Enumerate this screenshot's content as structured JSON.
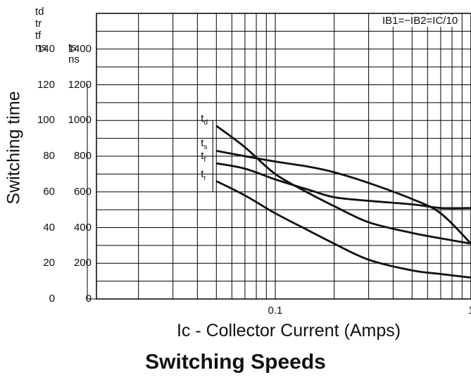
{
  "chart_data": {
    "type": "line",
    "title": "Switching Speeds",
    "xlabel": "Ic - Collector Current (Amps)",
    "ylabel": "Switching time",
    "xscale": "log",
    "xlim": [
      0.0122,
      1
    ],
    "x_ticks": [
      "0.1",
      "1"
    ],
    "ylim_left": [
      0,
      160
    ],
    "ylim_right": [
      0,
      1600
    ],
    "y_header_left": [
      "td",
      "tr",
      "tf",
      "ns"
    ],
    "y_header_right": [
      "ts",
      "ns"
    ],
    "y_ticks_left": [
      "0",
      "20",
      "40",
      "60",
      "80",
      "100",
      "120",
      "140"
    ],
    "y_ticks_right": [
      "0",
      "200",
      "400",
      "600",
      "800",
      "1000",
      "1200",
      "1400"
    ],
    "annotation": "IB1=−IB2=IC/10",
    "grid": true,
    "series": [
      {
        "name": "td",
        "label_text": "t",
        "label_sub": "d",
        "x": [
          0.05,
          0.07,
          0.1,
          0.15,
          0.2,
          0.3,
          0.5,
          0.7,
          1.0
        ],
        "y": [
          97,
          85,
          70,
          59,
          52,
          43,
          37,
          34,
          31
        ]
      },
      {
        "name": "ts",
        "label_text": "t",
        "label_sub": "s",
        "x": [
          0.05,
          0.07,
          0.1,
          0.15,
          0.2,
          0.3,
          0.5,
          0.7,
          1.0
        ],
        "y": [
          83,
          80,
          77,
          74,
          71,
          65,
          56,
          48,
          31
        ]
      },
      {
        "name": "tf",
        "label_text": "t",
        "label_sub": "f",
        "x": [
          0.05,
          0.07,
          0.1,
          0.15,
          0.2,
          0.3,
          0.5,
          0.7,
          1.0
        ],
        "y": [
          76,
          73,
          67,
          61,
          57,
          55,
          53,
          51,
          51
        ]
      },
      {
        "name": "tr",
        "label_text": "t",
        "label_sub": "r",
        "x": [
          0.05,
          0.07,
          0.1,
          0.15,
          0.2,
          0.3,
          0.5,
          0.7,
          1.0
        ],
        "y": [
          66,
          58,
          48,
          38,
          31,
          22,
          16,
          14,
          12
        ]
      }
    ]
  }
}
